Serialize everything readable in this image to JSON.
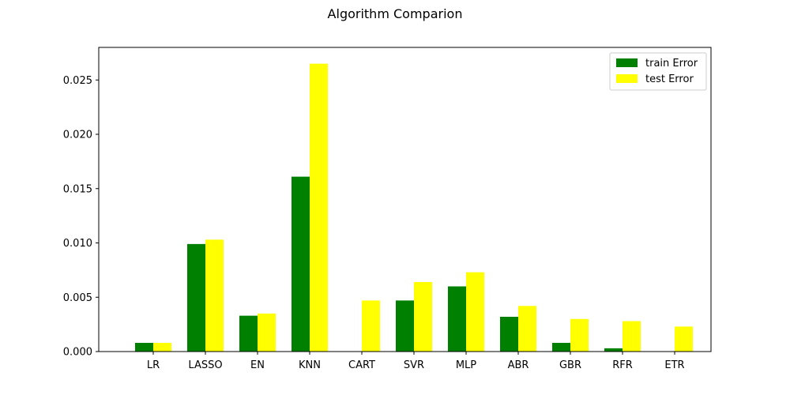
{
  "chart_data": {
    "type": "bar",
    "title": "Algorithm Comparion",
    "xlabel": "",
    "ylabel": "",
    "categories": [
      "LR",
      "LASSO",
      "EN",
      "KNN",
      "CART",
      "SVR",
      "MLP",
      "ABR",
      "GBR",
      "RFR",
      "ETR"
    ],
    "series": [
      {
        "name": "train Error",
        "color": "#008000",
        "values": [
          0.0008,
          0.0099,
          0.0033,
          0.0161,
          0.0,
          0.0047,
          0.006,
          0.0032,
          0.0008,
          0.0003,
          0.0
        ]
      },
      {
        "name": "test Error",
        "color": "#ffff00",
        "values": [
          0.0008,
          0.0103,
          0.0035,
          0.0265,
          0.0047,
          0.0064,
          0.0073,
          0.0042,
          0.003,
          0.0028,
          0.0023
        ]
      }
    ],
    "ylim": [
      0,
      0.028
    ],
    "yticks": [
      "0.000",
      "0.005",
      "0.010",
      "0.015",
      "0.020",
      "0.025"
    ],
    "legend_position": "top-right",
    "grid": false
  }
}
